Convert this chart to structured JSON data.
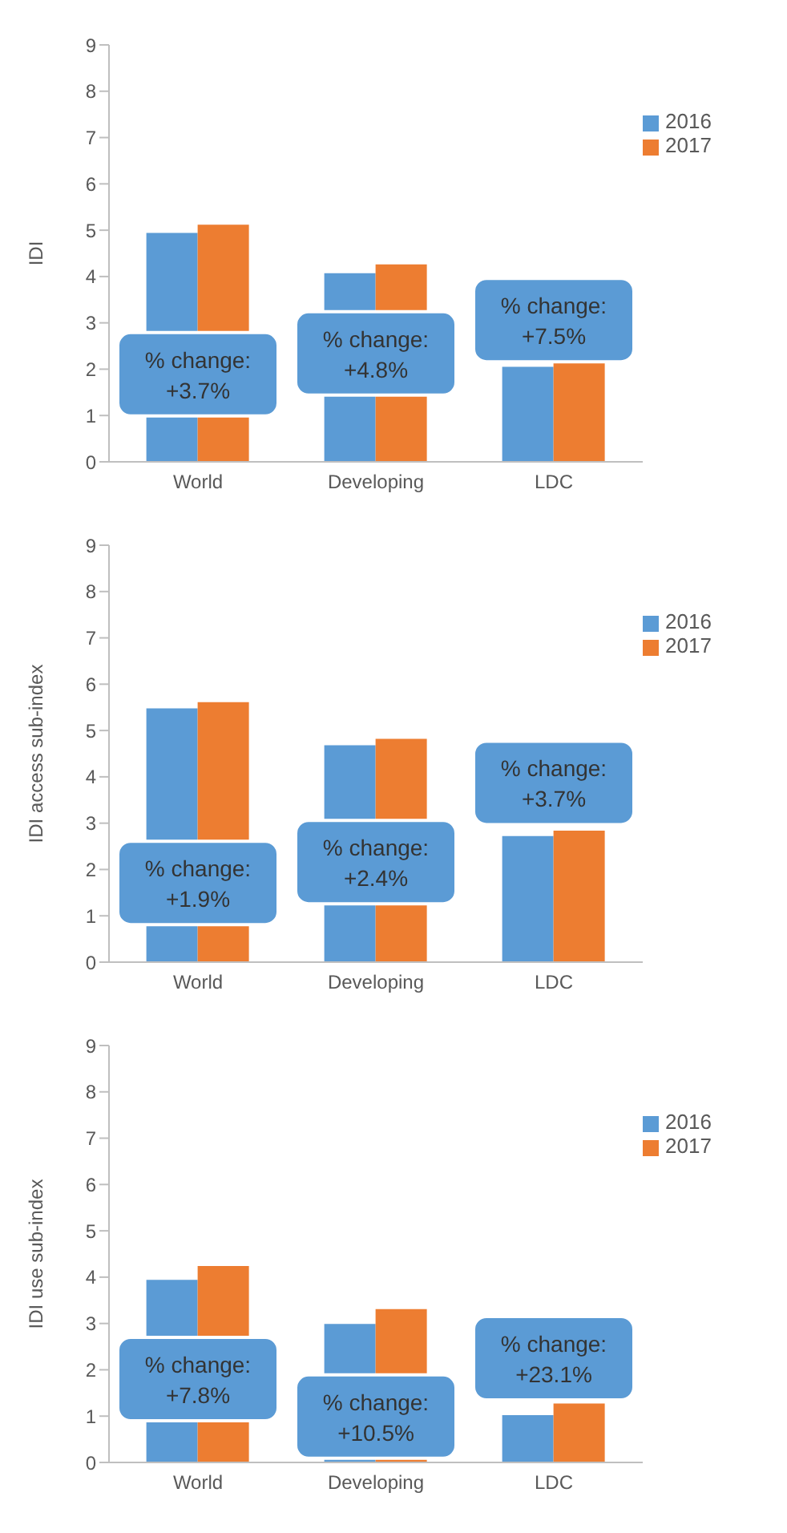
{
  "chart_data": [
    {
      "type": "bar",
      "ylabel": "IDI",
      "categories": [
        "World",
        "Developing",
        "LDC"
      ],
      "series": [
        {
          "name": "2016",
          "color": "#5b9bd5",
          "values": [
            4.94,
            4.07,
            2.05
          ]
        },
        {
          "name": "2017",
          "color": "#ed7d31",
          "values": [
            5.12,
            4.26,
            2.2
          ]
        }
      ],
      "ylim": [
        0,
        9
      ],
      "yticks": [
        0,
        1,
        2,
        3,
        4,
        5,
        6,
        7,
        8,
        9
      ],
      "grid": false,
      "legend": "top right",
      "annotations": [
        "% change:\n+3.7%",
        "% change:\n+4.8%",
        "% change:\n+7.5%"
      ]
    },
    {
      "type": "bar",
      "ylabel": "IDI access sub-index",
      "categories": [
        "World",
        "Developing",
        "LDC"
      ],
      "series": [
        {
          "name": "2016",
          "color": "#5b9bd5",
          "values": [
            5.48,
            4.68,
            2.72
          ]
        },
        {
          "name": "2017",
          "color": "#ed7d31",
          "values": [
            5.61,
            4.82,
            2.84
          ]
        }
      ],
      "ylim": [
        0,
        9
      ],
      "yticks": [
        0,
        1,
        2,
        3,
        4,
        5,
        6,
        7,
        8,
        9
      ],
      "grid": false,
      "legend": "top right",
      "annotations": [
        "% change:\n+1.9%",
        "% change:\n+2.4%",
        "% change:\n+3.7%"
      ]
    },
    {
      "type": "bar",
      "ylabel": "IDI use sub-index",
      "categories": [
        "World",
        "Developing",
        "LDC"
      ],
      "series": [
        {
          "name": "2016",
          "color": "#5b9bd5",
          "values": [
            3.94,
            2.99,
            1.02
          ]
        },
        {
          "name": "2017",
          "color": "#ed7d31",
          "values": [
            4.24,
            3.31,
            1.27
          ]
        }
      ],
      "ylim": [
        0,
        9
      ],
      "yticks": [
        0,
        1,
        2,
        3,
        4,
        5,
        6,
        7,
        8,
        9
      ],
      "grid": false,
      "legend": "top right",
      "annotations": [
        "% change:\n+7.8%",
        "% change:\n+10.5%",
        "% change:\n+23.1%"
      ]
    }
  ]
}
